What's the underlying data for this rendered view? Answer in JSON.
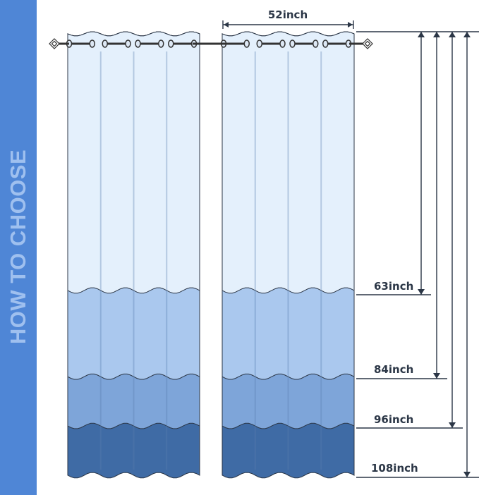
{
  "sidebar": {
    "title": "HOW TO CHOOSE",
    "color": "#4f86d6"
  },
  "width_label": "52inch",
  "lengths": [
    {
      "label": "63inch",
      "value": 63,
      "color": "#e4f0fc"
    },
    {
      "label": "84inch",
      "value": 84,
      "color": "#aac8ee"
    },
    {
      "label": "96inch",
      "value": 96,
      "color": "#7ea5d9"
    },
    {
      "label": "108inch",
      "value": 108,
      "color": "#3f6ba5"
    }
  ],
  "line_color": "#2b3646"
}
